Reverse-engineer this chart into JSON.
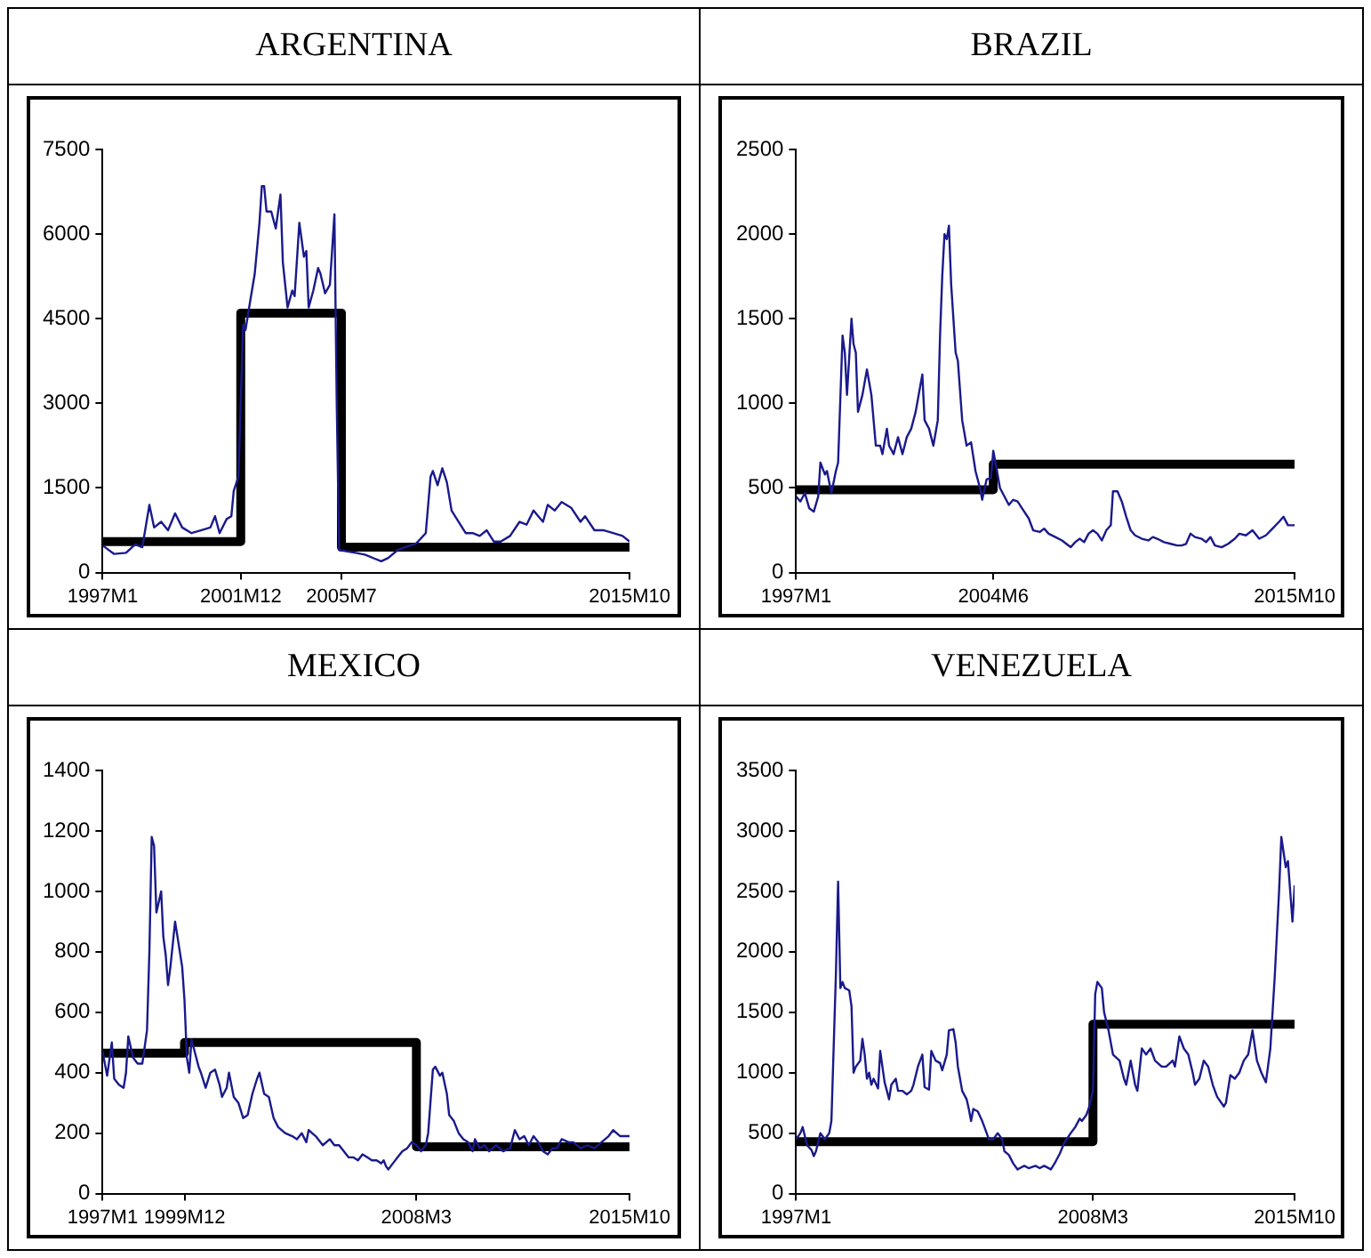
{
  "chart_data": [
    {
      "type": "line",
      "title": "ARGENTINA",
      "xlim": [
        "1997-01",
        "2015-10"
      ],
      "xticks": [
        {
          "value": "1997-01",
          "label": "1997M1"
        },
        {
          "value": "2001-12",
          "label": "2001M12"
        },
        {
          "value": "2005-07",
          "label": "2005M7"
        },
        {
          "value": "2015-10",
          "label": "2015M10"
        }
      ],
      "ylim": [
        0,
        7500
      ],
      "yticks": [
        0,
        1500,
        3000,
        4500,
        6000,
        7500
      ],
      "grid": false,
      "legend": false,
      "series": [
        {
          "type": "line",
          "color": "#1a1a8c",
          "x": [
            "1997-01",
            "1997-06",
            "1997-11",
            "1998-03",
            "1998-06",
            "1998-09",
            "1998-11",
            "1999-02",
            "1999-05",
            "1999-08",
            "1999-11",
            "2000-03",
            "2000-07",
            "2000-11",
            "2001-01",
            "2001-03",
            "2001-06",
            "2001-08",
            "2001-09",
            "2001-11",
            "2002-01",
            "2002-02",
            "2002-04",
            "2002-06",
            "2002-08",
            "2002-09",
            "2002-10",
            "2002-11",
            "2003-01",
            "2003-03",
            "2003-05",
            "2003-06",
            "2003-08",
            "2003-10",
            "2003-11",
            "2004-01",
            "2004-03",
            "2004-04",
            "2004-05",
            "2004-07",
            "2004-09",
            "2004-10",
            "2004-12",
            "2005-02",
            "2005-04",
            "2005-05",
            "2005-06",
            "2005-09",
            "2006-01",
            "2006-05",
            "2006-09",
            "2006-12",
            "2007-03",
            "2007-07",
            "2007-11",
            "2008-03",
            "2008-07",
            "2008-09",
            "2008-10",
            "2008-12",
            "2009-02",
            "2009-04",
            "2009-06",
            "2009-09",
            "2009-12",
            "2010-03",
            "2010-06",
            "2010-09",
            "2010-12",
            "2011-03",
            "2011-07",
            "2011-11",
            "2012-02",
            "2012-05",
            "2012-07",
            "2012-09",
            "2012-11",
            "2013-02",
            "2013-05",
            "2013-09",
            "2014-01",
            "2014-03",
            "2014-07",
            "2014-11",
            "2015-03",
            "2015-07",
            "2015-10"
          ],
          "values": [
            480,
            330,
            350,
            500,
            450,
            1200,
            800,
            900,
            750,
            1050,
            800,
            700,
            750,
            800,
            1000,
            700,
            950,
            1000,
            1450,
            1700,
            4400,
            4300,
            4800,
            5300,
            6200,
            6850,
            6850,
            6400,
            6400,
            6100,
            6700,
            5500,
            4700,
            5000,
            4900,
            6200,
            5600,
            5700,
            4700,
            5000,
            5400,
            5300,
            4950,
            5100,
            6350,
            3000,
            400,
            380,
            350,
            320,
            250,
            200,
            260,
            400,
            460,
            520,
            700,
            1700,
            1800,
            1550,
            1850,
            1600,
            1100,
            900,
            700,
            700,
            650,
            750,
            550,
            550,
            650,
            900,
            850,
            1100,
            1000,
            900,
            1200,
            1100,
            1250,
            1150,
            900,
            1000,
            750,
            750,
            700,
            650,
            550
          ]
        },
        {
          "type": "step",
          "color": "#000000",
          "x": [
            "1997-01",
            "2001-12",
            "2005-07",
            "2015-10"
          ],
          "values": [
            550,
            550,
            4600,
            450
          ]
        }
      ]
    },
    {
      "type": "line",
      "title": "BRAZIL",
      "xlim": [
        "1997-01",
        "2015-10"
      ],
      "xticks": [
        {
          "value": "1997-01",
          "label": "1997M1"
        },
        {
          "value": "2004-06",
          "label": "2004M6"
        },
        {
          "value": "2015-10",
          "label": "2015M10"
        }
      ],
      "ylim": [
        0,
        2500
      ],
      "yticks": [
        0,
        500,
        1000,
        1500,
        2000,
        2500
      ],
      "grid": false,
      "legend": false,
      "series": [
        {
          "type": "line",
          "color": "#1a1a8c",
          "x": [
            "1997-01",
            "1997-03",
            "1997-05",
            "1997-07",
            "1997-09",
            "1997-11",
            "1997-12",
            "1998-02",
            "1998-03",
            "1998-05",
            "1998-07",
            "1998-08",
            "1998-10",
            "1998-11",
            "1998-12",
            "1999-02",
            "1999-03",
            "1999-04",
            "1999-05",
            "1999-07",
            "1999-09",
            "1999-11",
            "2000-01",
            "2000-03",
            "2000-04",
            "2000-06",
            "2000-07",
            "2000-09",
            "2000-11",
            "2001-01",
            "2001-03",
            "2001-05",
            "2001-07",
            "2001-09",
            "2001-10",
            "2001-11",
            "2002-01",
            "2002-03",
            "2002-05",
            "2002-06",
            "2002-07",
            "2002-08",
            "2002-09",
            "2002-10",
            "2002-11",
            "2003-01",
            "2003-02",
            "2003-04",
            "2003-06",
            "2003-08",
            "2003-10",
            "2003-12",
            "2004-01",
            "2004-03",
            "2004-05",
            "2004-06",
            "2004-07",
            "2004-09",
            "2004-11",
            "2005-01",
            "2005-03",
            "2005-05",
            "2005-07",
            "2005-10",
            "2005-12",
            "2006-03",
            "2006-05",
            "2006-07",
            "2006-10",
            "2007-01",
            "2007-03",
            "2007-05",
            "2007-07",
            "2007-09",
            "2007-11",
            "2008-01",
            "2008-03",
            "2008-05",
            "2008-07",
            "2008-09",
            "2008-11",
            "2008-12",
            "2009-02",
            "2009-04",
            "2009-06",
            "2009-08",
            "2009-10",
            "2010-01",
            "2010-04",
            "2010-06",
            "2010-08",
            "2010-11",
            "2011-02",
            "2011-05",
            "2011-07",
            "2011-09",
            "2011-11",
            "2012-01",
            "2012-04",
            "2012-06",
            "2012-08",
            "2012-10",
            "2013-01",
            "2013-04",
            "2013-07",
            "2013-09",
            "2013-12",
            "2014-03",
            "2014-06",
            "2014-09",
            "2014-12",
            "2015-03",
            "2015-05",
            "2015-07",
            "2015-10"
          ],
          "values": [
            450,
            420,
            470,
            380,
            360,
            450,
            650,
            580,
            600,
            470,
            600,
            650,
            1400,
            1300,
            1050,
            1500,
            1350,
            1300,
            950,
            1050,
            1200,
            1050,
            750,
            750,
            700,
            850,
            750,
            700,
            800,
            700,
            800,
            850,
            950,
            1100,
            1170,
            900,
            850,
            750,
            900,
            1400,
            1750,
            2000,
            1970,
            2050,
            1700,
            1300,
            1250,
            900,
            750,
            770,
            600,
            500,
            430,
            550,
            560,
            720,
            650,
            500,
            450,
            400,
            430,
            420,
            380,
            320,
            250,
            240,
            260,
            230,
            210,
            190,
            170,
            150,
            180,
            200,
            180,
            230,
            250,
            230,
            190,
            250,
            280,
            480,
            480,
            420,
            330,
            250,
            220,
            200,
            190,
            210,
            200,
            180,
            170,
            160,
            160,
            170,
            230,
            210,
            200,
            180,
            210,
            160,
            150,
            170,
            200,
            230,
            220,
            250,
            200,
            220,
            260,
            300,
            330,
            280,
            280
          ]
        },
        {
          "type": "step",
          "color": "#000000",
          "x": [
            "1997-01",
            "2004-06",
            "2015-10"
          ],
          "values": [
            490,
            490,
            640
          ]
        }
      ]
    },
    {
      "type": "line",
      "title": "MEXICO",
      "xlim": [
        "1997-01",
        "2015-10"
      ],
      "xticks": [
        {
          "value": "1997-01",
          "label": "1997M1"
        },
        {
          "value": "1999-12",
          "label": "1999M12"
        },
        {
          "value": "2008-03",
          "label": "2008M3"
        },
        {
          "value": "2015-10",
          "label": "2015M10"
        }
      ],
      "ylim": [
        0,
        1400
      ],
      "yticks": [
        0,
        200,
        400,
        600,
        800,
        1000,
        1200,
        1400
      ],
      "grid": false,
      "legend": false,
      "series": [
        {
          "type": "line",
          "color": "#1a1a8c",
          "x": [
            "1997-01",
            "1997-03",
            "1997-05",
            "1997-06",
            "1997-08",
            "1997-10",
            "1997-11",
            "1997-12",
            "1998-02",
            "1998-04",
            "1998-06",
            "1998-08",
            "1998-09",
            "1998-10",
            "1998-11",
            "1998-12",
            "1999-02",
            "1999-03",
            "1999-04",
            "1999-05",
            "1999-06",
            "1999-08",
            "1999-09",
            "1999-11",
            "1999-12",
            "2000-01",
            "2000-02",
            "2000-03",
            "2000-04",
            "2000-06",
            "2000-07",
            "2000-09",
            "2000-11",
            "2001-01",
            "2001-03",
            "2001-04",
            "2001-06",
            "2001-07",
            "2001-09",
            "2001-11",
            "2002-01",
            "2002-03",
            "2002-05",
            "2002-07",
            "2002-08",
            "2002-10",
            "2002-12",
            "2003-02",
            "2003-04",
            "2003-07",
            "2003-10",
            "2003-12",
            "2004-02",
            "2004-04",
            "2004-05",
            "2004-08",
            "2004-11",
            "2005-02",
            "2005-04",
            "2005-06",
            "2005-08",
            "2005-10",
            "2005-12",
            "2006-02",
            "2006-04",
            "2006-06",
            "2006-08",
            "2006-10",
            "2006-12",
            "2007-01",
            "2007-02",
            "2007-03",
            "2007-05",
            "2007-07",
            "2007-09",
            "2007-11",
            "2008-01",
            "2008-03",
            "2008-05",
            "2008-07",
            "2008-08",
            "2008-10",
            "2008-11",
            "2009-01",
            "2009-02",
            "2009-04",
            "2009-05",
            "2009-07",
            "2009-09",
            "2009-11",
            "2010-01",
            "2010-03",
            "2010-04",
            "2010-06",
            "2010-08",
            "2010-10",
            "2011-01",
            "2011-04",
            "2011-07",
            "2011-09",
            "2011-11",
            "2012-01",
            "2012-03",
            "2012-05",
            "2012-07",
            "2012-09",
            "2012-11",
            "2013-01",
            "2013-03",
            "2013-05",
            "2013-08",
            "2013-10",
            "2014-01",
            "2014-04",
            "2014-07",
            "2014-10",
            "2015-01",
            "2015-03",
            "2015-06",
            "2015-10"
          ],
          "values": [
            470,
            390,
            500,
            380,
            360,
            350,
            400,
            520,
            450,
            430,
            430,
            540,
            800,
            1180,
            1150,
            930,
            1000,
            850,
            790,
            690,
            750,
            900,
            850,
            750,
            640,
            450,
            400,
            510,
            480,
            420,
            400,
            350,
            400,
            410,
            360,
            320,
            350,
            400,
            320,
            300,
            250,
            260,
            330,
            380,
            400,
            330,
            320,
            250,
            220,
            200,
            190,
            180,
            200,
            170,
            210,
            190,
            160,
            180,
            160,
            160,
            140,
            120,
            120,
            110,
            130,
            120,
            110,
            110,
            100,
            110,
            90,
            80,
            100,
            120,
            140,
            150,
            170,
            160,
            140,
            160,
            200,
            410,
            420,
            390,
            400,
            330,
            260,
            240,
            200,
            180,
            170,
            140,
            180,
            150,
            160,
            140,
            160,
            140,
            150,
            210,
            180,
            190,
            160,
            190,
            170,
            140,
            130,
            150,
            150,
            180,
            170,
            170,
            150,
            160,
            150,
            170,
            190,
            210,
            190,
            190
          ]
        },
        {
          "type": "step",
          "color": "#000000",
          "x": [
            "1997-01",
            "1999-12",
            "2008-03",
            "2015-10"
          ],
          "values": [
            465,
            465,
            500,
            155
          ]
        }
      ]
    },
    {
      "type": "line",
      "title": "VENEZUELA",
      "xlim": [
        "1997-01",
        "2015-10"
      ],
      "xticks": [
        {
          "value": "1997-01",
          "label": "1997M1"
        },
        {
          "value": "2008-03",
          "label": "2008M3"
        },
        {
          "value": "2015-10",
          "label": "2015M10"
        }
      ],
      "ylim": [
        0,
        3500
      ],
      "yticks": [
        0,
        500,
        1000,
        1500,
        2000,
        2500,
        3000,
        3500
      ],
      "grid": false,
      "legend": false,
      "series": [
        {
          "type": "line",
          "color": "#1a1a8c",
          "x": [
            "1997-01",
            "1997-03",
            "1997-04",
            "1997-06",
            "1997-08",
            "1997-09",
            "1997-10",
            "1997-12",
            "1998-02",
            "1998-04",
            "1998-05",
            "1998-07",
            "1998-08",
            "1998-09",
            "1998-10",
            "1998-11",
            "1999-01",
            "1999-02",
            "1999-03",
            "1999-04",
            "1999-06",
            "1999-07",
            "1999-08",
            "1999-09",
            "1999-10",
            "1999-11",
            "1999-12",
            "2000-02",
            "2000-03",
            "2000-05",
            "2000-06",
            "2000-07",
            "2000-08",
            "2000-10",
            "2000-11",
            "2001-01",
            "2001-03",
            "2001-05",
            "2001-06",
            "2001-08",
            "2001-10",
            "2001-11",
            "2002-01",
            "2002-02",
            "2002-04",
            "2002-06",
            "2002-07",
            "2002-09",
            "2002-10",
            "2002-12",
            "2003-01",
            "2003-02",
            "2003-04",
            "2003-06",
            "2003-07",
            "2003-08",
            "2003-09",
            "2003-11",
            "2004-01",
            "2004-02",
            "2004-04",
            "2004-06",
            "2004-08",
            "2004-10",
            "2004-11",
            "2005-01",
            "2005-03",
            "2005-05",
            "2005-06",
            "2005-08",
            "2005-10",
            "2006-01",
            "2006-03",
            "2006-05",
            "2006-08",
            "2006-10",
            "2006-12",
            "2007-02",
            "2007-05",
            "2007-07",
            "2007-09",
            "2007-10",
            "2007-12",
            "2008-01",
            "2008-03",
            "2008-04",
            "2008-05",
            "2008-07",
            "2008-08",
            "2008-10",
            "2008-12",
            "2009-03",
            "2009-05",
            "2009-06",
            "2009-08",
            "2009-10",
            "2009-11",
            "2010-01",
            "2010-03",
            "2010-05",
            "2010-07",
            "2010-10",
            "2010-12",
            "2011-03",
            "2011-04",
            "2011-06",
            "2011-08",
            "2011-10",
            "2011-12",
            "2012-01",
            "2012-03",
            "2012-05",
            "2012-07",
            "2012-09",
            "2012-11",
            "2013-02",
            "2013-03",
            "2013-05",
            "2013-07",
            "2013-09",
            "2013-11",
            "2014-01",
            "2014-03",
            "2014-05",
            "2014-07",
            "2014-09",
            "2014-11",
            "2015-01",
            "2015-03",
            "2015-04",
            "2015-06",
            "2015-07",
            "2015-09",
            "2015-10"
          ],
          "values": [
            450,
            500,
            550,
            400,
            360,
            310,
            350,
            500,
            450,
            500,
            600,
            1800,
            2580,
            1700,
            1750,
            1700,
            1680,
            1550,
            1000,
            1050,
            1100,
            1280,
            1150,
            950,
            1000,
            900,
            950,
            870,
            1180,
            920,
            850,
            780,
            900,
            950,
            850,
            850,
            820,
            850,
            900,
            1050,
            1150,
            880,
            860,
            1180,
            1100,
            1080,
            1020,
            1150,
            1350,
            1360,
            1250,
            1050,
            850,
            780,
            700,
            600,
            700,
            680,
            600,
            550,
            450,
            450,
            500,
            450,
            350,
            320,
            250,
            200,
            210,
            230,
            210,
            230,
            210,
            230,
            200,
            260,
            330,
            420,
            500,
            550,
            620,
            600,
            650,
            700,
            850,
            1650,
            1750,
            1700,
            1500,
            1350,
            1150,
            1100,
            950,
            900,
            1100,
            900,
            850,
            1200,
            1150,
            1200,
            1100,
            1050,
            1050,
            1100,
            1050,
            1300,
            1200,
            1150,
            1000,
            900,
            950,
            1100,
            1050,
            900,
            800,
            720,
            750,
            980,
            950,
            1000,
            1100,
            1150,
            1350,
            1100,
            1000,
            920,
            1200,
            1800,
            2500,
            2950,
            2700,
            2750,
            2250,
            2550
          ]
        },
        {
          "type": "step",
          "color": "#000000",
          "x": [
            "1997-01",
            "2008-03",
            "2015-10"
          ],
          "values": [
            430,
            430,
            1400
          ]
        }
      ]
    }
  ]
}
